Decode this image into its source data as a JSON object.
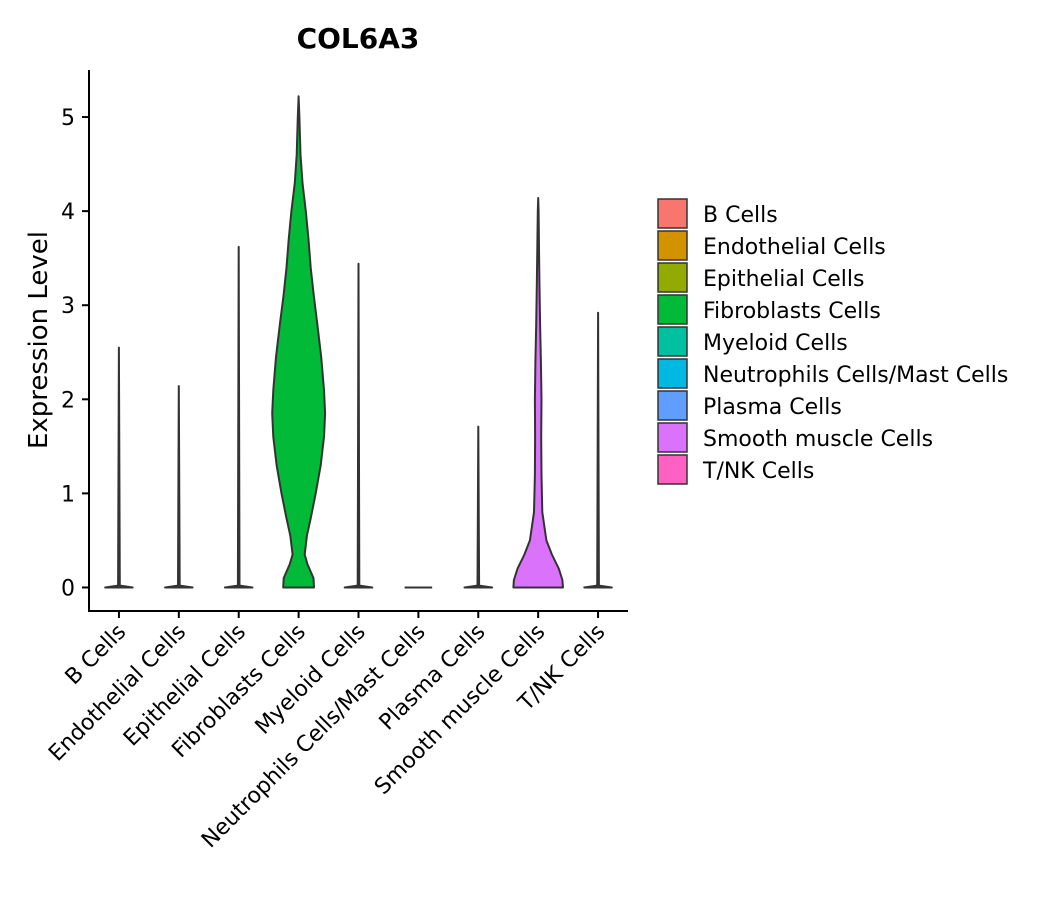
{
  "chart_data": {
    "type": "violin",
    "title": "COL6A3",
    "xlabel": "",
    "ylabel": "Expression Level",
    "ylim": [
      -0.25,
      5.5
    ],
    "yticks": [
      0,
      1,
      2,
      3,
      4,
      5
    ],
    "categories": [
      "B Cells",
      "Endothelial Cells",
      "Epithelial Cells",
      "Fibroblasts Cells",
      "Myeloid Cells",
      "Neutrophils Cells/Mast Cells",
      "Plasma Cells",
      "Smooth muscle Cells",
      "T/NK Cells"
    ],
    "colors": [
      "#F8766D",
      "#D39200",
      "#93AA00",
      "#00BA38",
      "#00C19F",
      "#00B9E3",
      "#619CFF",
      "#DB72FB",
      "#FF61C3"
    ],
    "max_values": [
      2.55,
      2.14,
      3.62,
      5.22,
      3.44,
      0.0,
      1.71,
      4.14,
      2.92
    ],
    "density_profiles": [
      [
        [
          0,
          0.5
        ],
        [
          0.02,
          0.03
        ],
        [
          2.55,
          0.0
        ]
      ],
      [
        [
          0,
          0.5
        ],
        [
          0.02,
          0.03
        ],
        [
          2.14,
          0.0
        ]
      ],
      [
        [
          0,
          0.5
        ],
        [
          0.02,
          0.03
        ],
        [
          3.62,
          0.0
        ]
      ],
      [
        [
          0,
          0.56
        ],
        [
          0.1,
          0.54
        ],
        [
          0.25,
          0.32
        ],
        [
          0.35,
          0.22
        ],
        [
          0.55,
          0.3
        ],
        [
          0.75,
          0.45
        ],
        [
          1.0,
          0.62
        ],
        [
          1.3,
          0.8
        ],
        [
          1.6,
          0.92
        ],
        [
          1.85,
          0.96
        ],
        [
          2.1,
          0.92
        ],
        [
          2.45,
          0.82
        ],
        [
          2.8,
          0.68
        ],
        [
          3.1,
          0.55
        ],
        [
          3.4,
          0.44
        ],
        [
          3.7,
          0.36
        ],
        [
          4.0,
          0.26
        ],
        [
          4.3,
          0.14
        ],
        [
          4.6,
          0.07
        ],
        [
          5.0,
          0.03
        ],
        [
          5.22,
          0.0
        ]
      ],
      [
        [
          0,
          0.5
        ],
        [
          0.02,
          0.03
        ],
        [
          3.44,
          0.0
        ]
      ],
      [
        [
          0,
          0.5
        ]
      ],
      [
        [
          0,
          0.5
        ],
        [
          0.02,
          0.03
        ],
        [
          1.71,
          0.0
        ]
      ],
      [
        [
          0,
          0.9
        ],
        [
          0.08,
          0.88
        ],
        [
          0.2,
          0.75
        ],
        [
          0.35,
          0.5
        ],
        [
          0.5,
          0.3
        ],
        [
          0.8,
          0.15
        ],
        [
          1.2,
          0.12
        ],
        [
          1.6,
          0.11
        ],
        [
          2.0,
          0.12
        ],
        [
          2.4,
          0.1
        ],
        [
          2.8,
          0.07
        ],
        [
          3.2,
          0.05
        ],
        [
          3.6,
          0.03
        ],
        [
          4.0,
          0.015
        ],
        [
          4.14,
          0.0
        ]
      ],
      [
        [
          0,
          0.5
        ],
        [
          0.02,
          0.03
        ],
        [
          2.92,
          0.0
        ]
      ]
    ]
  }
}
